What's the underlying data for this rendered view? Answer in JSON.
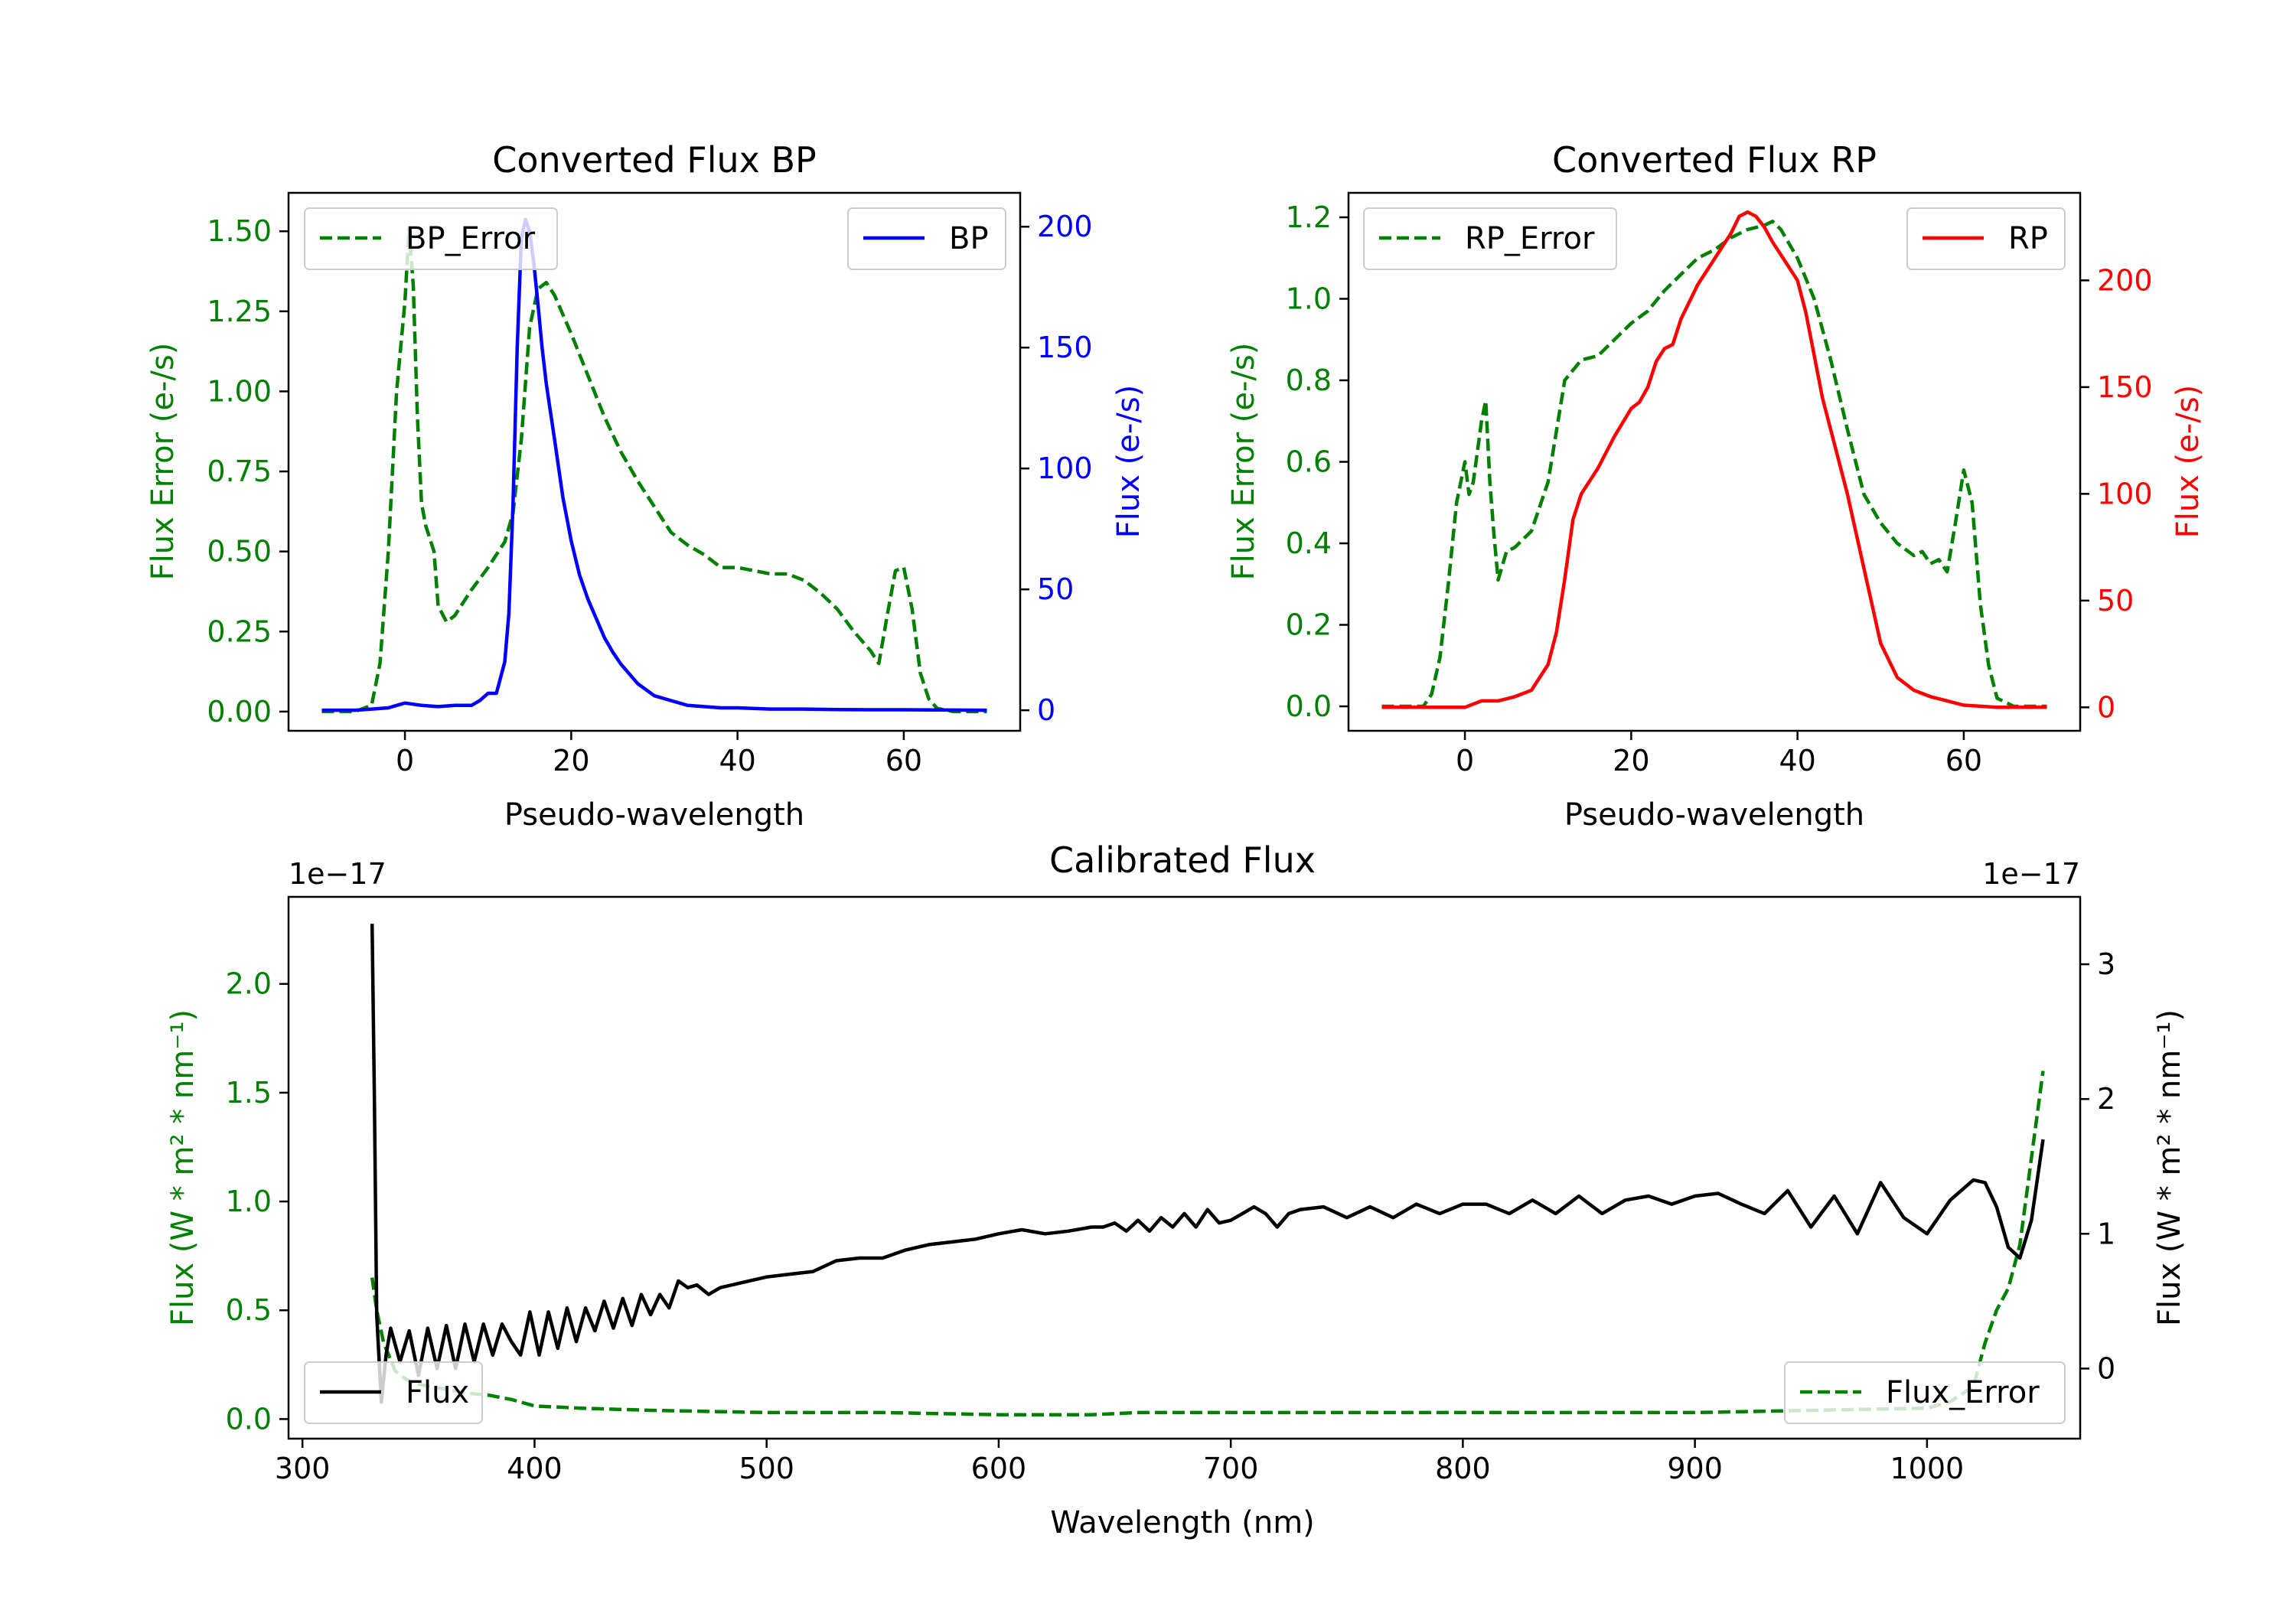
{
  "chart_data": [
    {
      "type": "line",
      "title": "Converted Flux BP",
      "xlabel": "Pseudo-wavelength",
      "xlim": [
        -14,
        74
      ],
      "xticks": [
        0,
        20,
        40,
        60
      ],
      "left_axis": {
        "label": "Flux Error (e-/s)",
        "color": "#008000",
        "ylim": [
          -0.06,
          1.62
        ],
        "ticks": [
          "0.00",
          "0.25",
          "0.50",
          "0.75",
          "1.00",
          "1.25",
          "1.50"
        ],
        "tick_values": [
          0,
          0.25,
          0.5,
          0.75,
          1.0,
          1.25,
          1.5
        ]
      },
      "right_axis": {
        "label": "Flux (e-/s)",
        "color": "#0000ff",
        "ylim": [
          -8.5,
          214
        ],
        "ticks": [
          "0",
          "50",
          "100",
          "150",
          "200"
        ],
        "tick_values": [
          0,
          50,
          100,
          150,
          200
        ]
      },
      "series": [
        {
          "name": "BP_Error",
          "axis": "left",
          "color": "#008000",
          "dash": true,
          "x": [
            -10,
            -6,
            -4,
            -3,
            -2,
            -1,
            0,
            0.5,
            1,
            1.5,
            2,
            2.5,
            3,
            3.5,
            4,
            5,
            6,
            7,
            8,
            10,
            12,
            13,
            14,
            15,
            16,
            17,
            18,
            19,
            20,
            22,
            24,
            26,
            28,
            30,
            32,
            34,
            36,
            38,
            40,
            42,
            44,
            46,
            48,
            50,
            52,
            54,
            56,
            57,
            58,
            59,
            60,
            61,
            62,
            63,
            64,
            66,
            70
          ],
          "y": [
            0.0,
            0.0,
            0.02,
            0.15,
            0.5,
            1.0,
            1.28,
            1.51,
            1.33,
            0.92,
            0.65,
            0.58,
            0.54,
            0.5,
            0.33,
            0.28,
            0.3,
            0.34,
            0.38,
            0.45,
            0.53,
            0.62,
            0.85,
            1.2,
            1.32,
            1.34,
            1.3,
            1.24,
            1.18,
            1.05,
            0.92,
            0.81,
            0.72,
            0.64,
            0.56,
            0.52,
            0.49,
            0.45,
            0.45,
            0.44,
            0.43,
            0.43,
            0.41,
            0.37,
            0.32,
            0.25,
            0.19,
            0.15,
            0.3,
            0.44,
            0.45,
            0.32,
            0.12,
            0.04,
            0.01,
            0.0,
            0.0
          ]
        },
        {
          "name": "BP",
          "axis": "right",
          "color": "#0000ff",
          "dash": false,
          "x": [
            -10,
            -6,
            -4,
            -2,
            0,
            2,
            4,
            6,
            8,
            9,
            10,
            11,
            12,
            12.5,
            13,
            13.5,
            14,
            14.5,
            15,
            15.5,
            16,
            16.5,
            17,
            18,
            19,
            20,
            21,
            22,
            23,
            24,
            25,
            26,
            28,
            30,
            32,
            34,
            36,
            38,
            40,
            44,
            48,
            52,
            56,
            60,
            64,
            70
          ],
          "y": [
            0,
            0,
            0.5,
            1,
            3,
            2,
            1.5,
            2,
            2,
            4,
            7,
            7,
            20,
            40,
            85,
            150,
            195,
            203,
            198,
            185,
            168,
            150,
            135,
            112,
            88,
            70,
            56,
            46,
            38,
            30,
            24,
            19,
            11,
            6,
            4,
            2,
            1.5,
            1,
            1,
            0.5,
            0.5,
            0.3,
            0.2,
            0.2,
            0.1,
            0
          ]
        }
      ],
      "legend": [
        {
          "label": "BP_Error",
          "position": "top-left"
        },
        {
          "label": "BP",
          "position": "top-right"
        }
      ]
    },
    {
      "type": "line",
      "title": "Converted Flux RP",
      "xlabel": "Pseudo-wavelength",
      "xlim": [
        -14,
        74
      ],
      "xticks": [
        0,
        20,
        40,
        60
      ],
      "left_axis": {
        "label": "Flux Error (e-/s)",
        "color": "#008000",
        "ylim": [
          -0.06,
          1.26
        ],
        "ticks": [
          "0.0",
          "0.2",
          "0.4",
          "0.6",
          "0.8",
          "1.0",
          "1.2"
        ],
        "tick_values": [
          0,
          0.2,
          0.4,
          0.6,
          0.8,
          1.0,
          1.2
        ]
      },
      "right_axis": {
        "label": "Flux (e-/s)",
        "color": "#ff0000",
        "ylim": [
          -11,
          241
        ],
        "ticks": [
          "0",
          "50",
          "100",
          "150",
          "200"
        ],
        "tick_values": [
          0,
          50,
          100,
          150,
          200
        ]
      },
      "series": [
        {
          "name": "RP_Error",
          "axis": "left",
          "color": "#008000",
          "dash": true,
          "x": [
            -10,
            -5,
            -4,
            -3,
            -2,
            -1,
            0,
            0.5,
            1,
            2,
            2.5,
            3,
            3.5,
            4,
            5,
            6,
            8,
            10,
            12,
            14,
            16,
            18,
            20,
            22,
            24,
            26,
            28,
            30,
            32,
            34,
            36,
            37,
            38,
            40,
            42,
            44,
            46,
            48,
            50,
            52,
            54,
            55,
            56,
            57,
            58,
            59,
            60,
            61,
            62,
            63,
            64,
            66,
            70
          ],
          "y": [
            0.0,
            0.0,
            0.03,
            0.12,
            0.3,
            0.5,
            0.6,
            0.52,
            0.55,
            0.7,
            0.75,
            0.55,
            0.42,
            0.31,
            0.38,
            0.39,
            0.43,
            0.55,
            0.8,
            0.85,
            0.86,
            0.9,
            0.94,
            0.97,
            1.02,
            1.06,
            1.1,
            1.12,
            1.15,
            1.17,
            1.18,
            1.19,
            1.17,
            1.1,
            1.0,
            0.85,
            0.68,
            0.52,
            0.45,
            0.4,
            0.37,
            0.38,
            0.35,
            0.36,
            0.33,
            0.45,
            0.58,
            0.5,
            0.25,
            0.1,
            0.02,
            0.0,
            0.0
          ]
        },
        {
          "name": "RP",
          "axis": "right",
          "color": "#ff0000",
          "dash": false,
          "x": [
            -10,
            -4,
            0,
            2,
            4,
            6,
            8,
            10,
            11,
            12,
            13,
            14,
            16,
            18,
            20,
            21,
            22,
            23,
            24,
            25,
            26,
            28,
            30,
            32,
            33,
            34,
            35,
            36,
            37,
            38,
            40,
            41,
            42,
            43,
            44,
            46,
            48,
            50,
            52,
            54,
            56,
            58,
            60,
            62,
            64,
            66,
            70
          ],
          "y": [
            0,
            0,
            0,
            3,
            3,
            5,
            8,
            20,
            35,
            60,
            88,
            100,
            112,
            127,
            140,
            143,
            150,
            162,
            168,
            170,
            182,
            198,
            210,
            222,
            230,
            232,
            230,
            225,
            218,
            212,
            200,
            185,
            165,
            145,
            130,
            100,
            65,
            30,
            14,
            8,
            5,
            3,
            1,
            0.5,
            0,
            0,
            0
          ]
        }
      ],
      "legend": [
        {
          "label": "RP_Error",
          "position": "top-left"
        },
        {
          "label": "RP",
          "position": "top-right"
        }
      ]
    },
    {
      "type": "line",
      "title": "Calibrated Flux",
      "xlabel": "Wavelength (nm)",
      "xlim": [
        294,
        1066
      ],
      "xticks": [
        300,
        400,
        500,
        600,
        700,
        800,
        900,
        1000
      ],
      "left_axis": {
        "label": "Flux (W * m² * nm⁻¹)",
        "color": "#008000",
        "ylim": [
          -0.09,
          2.4
        ],
        "scale": "1e−17",
        "ticks": [
          "0.0",
          "0.5",
          "1.0",
          "1.5",
          "2.0"
        ],
        "tick_values": [
          0,
          0.5,
          1.0,
          1.5,
          2.0
        ]
      },
      "right_axis": {
        "label": "Flux (W * m² * nm⁻¹)",
        "color": "#000000",
        "ylim": [
          -0.52,
          3.5
        ],
        "scale": "1e−17",
        "ticks": [
          "0",
          "1",
          "2",
          "3"
        ],
        "tick_values": [
          0,
          1,
          2,
          3
        ]
      },
      "series": [
        {
          "name": "Flux_Error",
          "axis": "left",
          "color": "#008000",
          "dash": true,
          "x": [
            330,
            332,
            335,
            340,
            345,
            350,
            360,
            370,
            380,
            390,
            400,
            420,
            450,
            500,
            550,
            600,
            620,
            640,
            660,
            700,
            750,
            800,
            850,
            900,
            950,
            1000,
            1010,
            1020,
            1025,
            1030,
            1035,
            1040,
            1045,
            1050
          ],
          "y": [
            0.65,
            0.5,
            0.35,
            0.22,
            0.18,
            0.16,
            0.14,
            0.12,
            0.11,
            0.09,
            0.06,
            0.05,
            0.04,
            0.03,
            0.03,
            0.02,
            0.02,
            0.02,
            0.03,
            0.03,
            0.03,
            0.03,
            0.03,
            0.03,
            0.04,
            0.05,
            0.08,
            0.15,
            0.35,
            0.5,
            0.6,
            0.8,
            1.2,
            1.6
          ]
        },
        {
          "name": "Flux",
          "axis": "right",
          "color": "#000000",
          "dash": false,
          "x": [
            330,
            331,
            332,
            334,
            336,
            338,
            342,
            346,
            350,
            354,
            358,
            362,
            366,
            370,
            374,
            378,
            382,
            386,
            390,
            394,
            398,
            402,
            406,
            410,
            414,
            418,
            422,
            426,
            430,
            434,
            438,
            442,
            446,
            450,
            454,
            458,
            462,
            466,
            470,
            475,
            480,
            490,
            500,
            510,
            520,
            530,
            540,
            550,
            560,
            570,
            580,
            590,
            600,
            610,
            620,
            630,
            640,
            645,
            650,
            655,
            660,
            665,
            670,
            675,
            680,
            685,
            690,
            695,
            700,
            705,
            710,
            715,
            720,
            725,
            730,
            740,
            750,
            760,
            770,
            780,
            790,
            800,
            810,
            820,
            830,
            840,
            850,
            860,
            870,
            880,
            890,
            900,
            910,
            920,
            930,
            940,
            950,
            960,
            970,
            980,
            990,
            1000,
            1010,
            1020,
            1025,
            1030,
            1035,
            1040,
            1045,
            1050
          ],
          "y": [
            3.3,
            2.0,
            0.4,
            -0.25,
            0.1,
            0.3,
            0.05,
            0.28,
            -0.05,
            0.3,
            0.0,
            0.32,
            0.0,
            0.33,
            0.05,
            0.33,
            0.1,
            0.33,
            0.2,
            0.1,
            0.42,
            0.1,
            0.42,
            0.15,
            0.45,
            0.2,
            0.45,
            0.28,
            0.5,
            0.3,
            0.52,
            0.32,
            0.55,
            0.4,
            0.55,
            0.45,
            0.65,
            0.6,
            0.62,
            0.55,
            0.6,
            0.64,
            0.68,
            0.7,
            0.72,
            0.8,
            0.82,
            0.82,
            0.88,
            0.92,
            0.94,
            0.96,
            1.0,
            1.03,
            1.0,
            1.02,
            1.05,
            1.05,
            1.08,
            1.02,
            1.1,
            1.02,
            1.12,
            1.05,
            1.15,
            1.05,
            1.18,
            1.08,
            1.1,
            1.15,
            1.2,
            1.15,
            1.05,
            1.15,
            1.18,
            1.2,
            1.12,
            1.2,
            1.12,
            1.22,
            1.15,
            1.22,
            1.22,
            1.15,
            1.25,
            1.15,
            1.28,
            1.15,
            1.25,
            1.28,
            1.22,
            1.28,
            1.3,
            1.22,
            1.15,
            1.32,
            1.05,
            1.28,
            1.0,
            1.38,
            1.12,
            1.0,
            1.25,
            1.4,
            1.38,
            1.2,
            0.9,
            0.82,
            1.1,
            1.7
          ]
        }
      ],
      "legend": [
        {
          "label": "Flux",
          "position": "bottom-left"
        },
        {
          "label": "Flux_Error",
          "position": "bottom-right"
        }
      ]
    }
  ]
}
